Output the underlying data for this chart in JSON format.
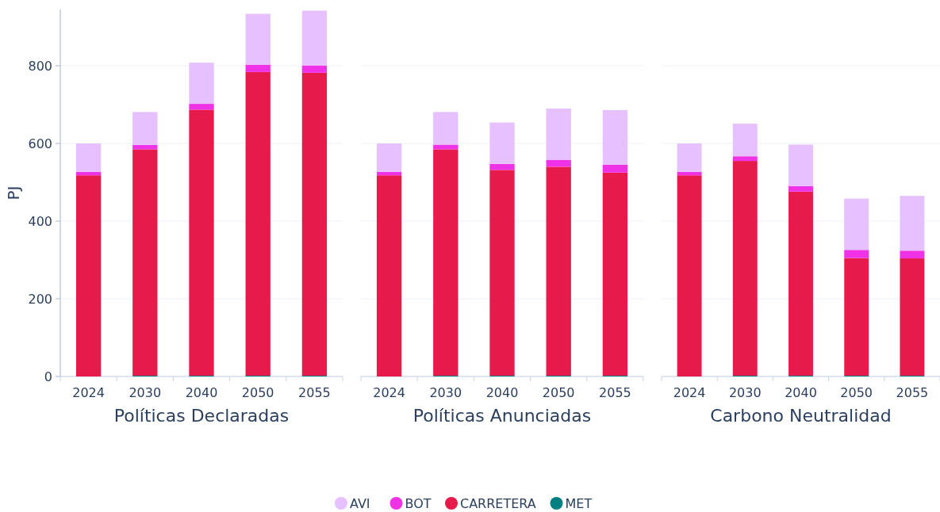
{
  "chart_data": [
    {
      "type": "bar",
      "stacked": true,
      "xlabel": "Políticas Declaradas",
      "ylabel": "PJ",
      "categories": [
        "2024",
        "2030",
        "2040",
        "2050",
        "2055"
      ],
      "ylim": [
        0,
        945
      ],
      "yticks": [
        0,
        200,
        400,
        600,
        800
      ],
      "grid": "y",
      "legend": "bottom",
      "series": [
        {
          "name": "MET",
          "color": "#008080",
          "values": [
            0,
            2,
            2,
            2,
            2
          ]
        },
        {
          "name": "CARRETERA",
          "color": "#e61b4b",
          "values": [
            518,
            583,
            685,
            782,
            780
          ]
        },
        {
          "name": "BOT",
          "color": "#f032e6",
          "values": [
            9,
            11,
            15,
            19,
            19
          ]
        },
        {
          "name": "AVI",
          "color": "#e6c0ff",
          "values": [
            73,
            85,
            106,
            131,
            141
          ]
        }
      ]
    },
    {
      "type": "bar",
      "stacked": true,
      "xlabel": "Políticas Anunciadas",
      "categories": [
        "2024",
        "2030",
        "2040",
        "2050",
        "2055"
      ],
      "yticks": [
        0,
        200,
        400,
        600,
        800
      ],
      "grid": "y",
      "tick_labels": "x",
      "series": [
        {
          "name": "MET",
          "color": "#008080",
          "values": [
            0,
            2,
            2,
            2,
            2
          ]
        },
        {
          "name": "CARRETERA",
          "color": "#e61b4b",
          "values": [
            518,
            583,
            530,
            538,
            523
          ]
        },
        {
          "name": "BOT",
          "color": "#f032e6",
          "values": [
            9,
            12,
            15,
            18,
            20
          ]
        },
        {
          "name": "AVI",
          "color": "#e6c0ff",
          "values": [
            73,
            84,
            107,
            132,
            141
          ]
        }
      ]
    },
    {
      "type": "bar",
      "stacked": true,
      "xlabel": "Carbono Neutralidad",
      "categories": [
        "2024",
        "2030",
        "2040",
        "2050",
        "2055"
      ],
      "yticks": [
        0,
        200,
        400,
        600,
        800
      ],
      "grid": "y",
      "tick_labels": "x",
      "series": [
        {
          "name": "MET",
          "color": "#008080",
          "values": [
            0,
            2,
            2,
            2,
            2
          ]
        },
        {
          "name": "CARRETERA",
          "color": "#e61b4b",
          "values": [
            518,
            553,
            474,
            303,
            302
          ]
        },
        {
          "name": "BOT",
          "color": "#f032e6",
          "values": [
            9,
            12,
            14,
            21,
            20
          ]
        },
        {
          "name": "AVI",
          "color": "#e6c0ff",
          "values": [
            73,
            84,
            107,
            132,
            141
          ]
        }
      ]
    }
  ]
}
